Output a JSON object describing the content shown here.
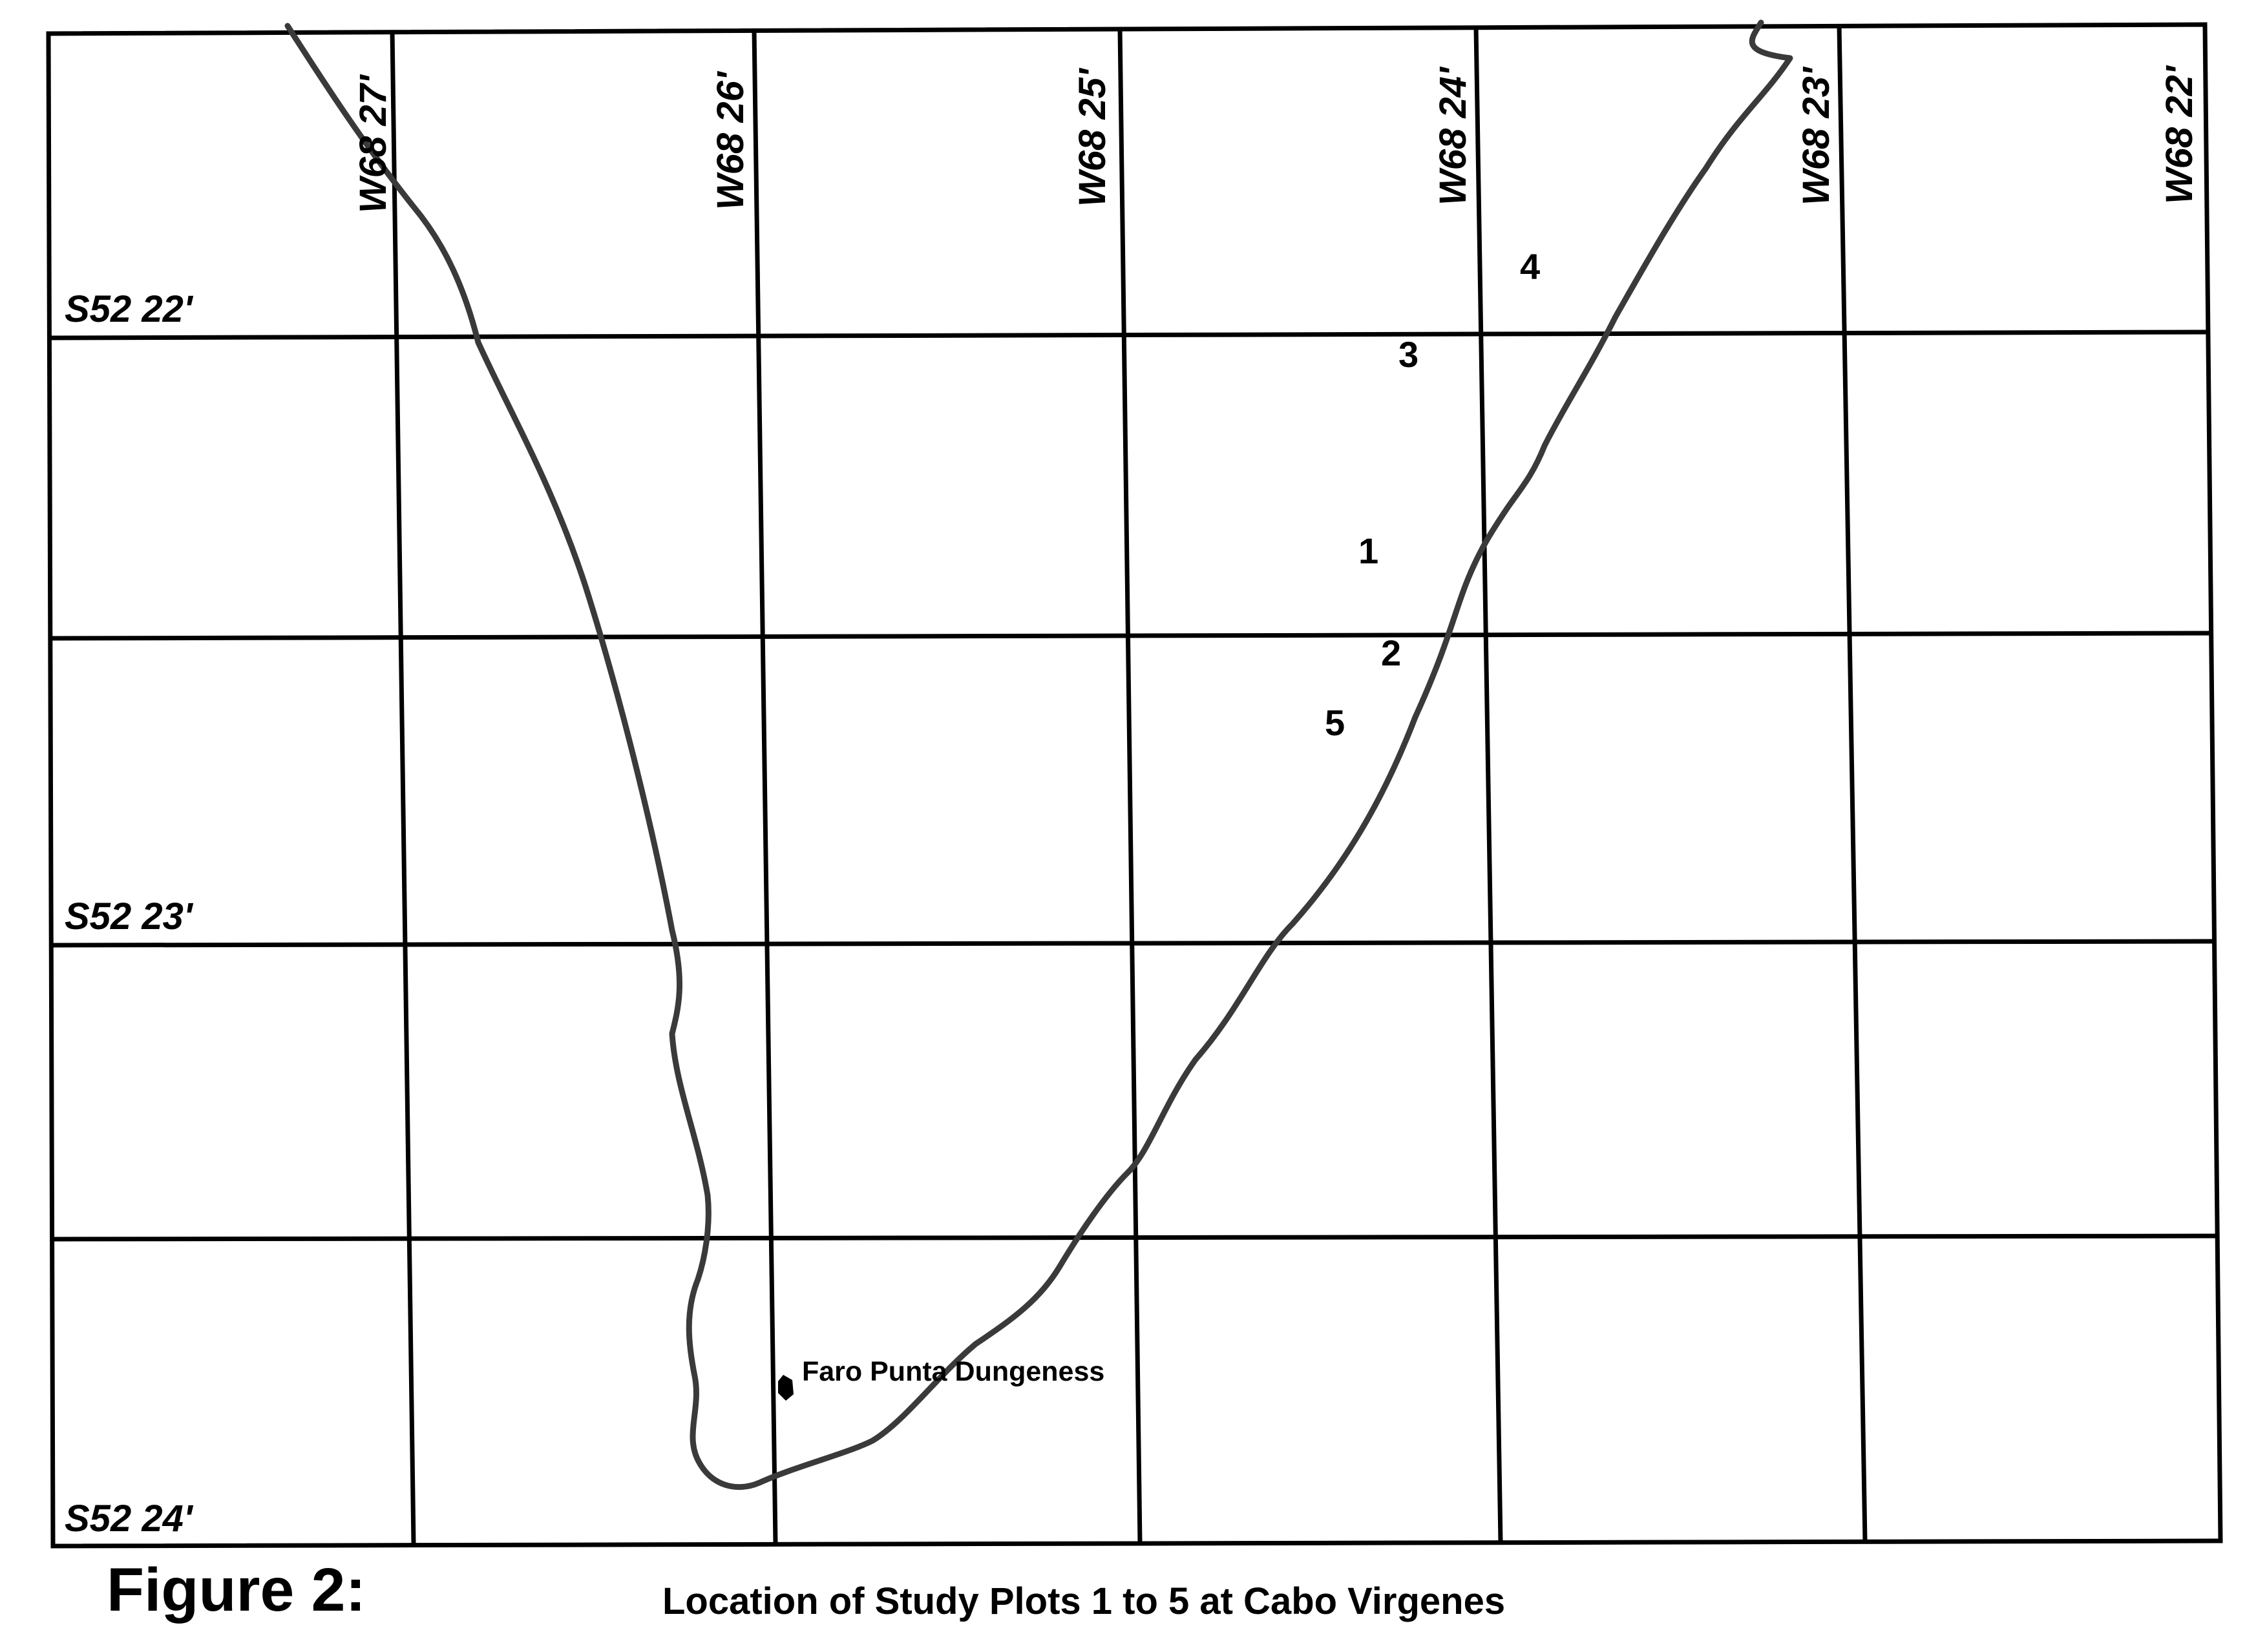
{
  "map": {
    "longitude_labels": [
      "W68 27'",
      "W68 26'",
      "W68 25'",
      "W68 24'",
      "W68 23'",
      "W68 22'"
    ],
    "latitude_labels": [
      "S52 22'",
      "S52 23'",
      "S52 24'"
    ],
    "study_plots": [
      "4",
      "3",
      "1",
      "2",
      "5"
    ],
    "landmark": {
      "name": "Faro Punta Dungeness",
      "icon": "lighthouse-marker-icon"
    },
    "colors": {
      "grid": "#000000",
      "coastline": "#3a3a3a",
      "background": "#ffffff"
    }
  },
  "caption": {
    "figure_label": "Figure 2:",
    "title": "Location of Study Plots 1 to 5 at Cabo Virgenes"
  }
}
